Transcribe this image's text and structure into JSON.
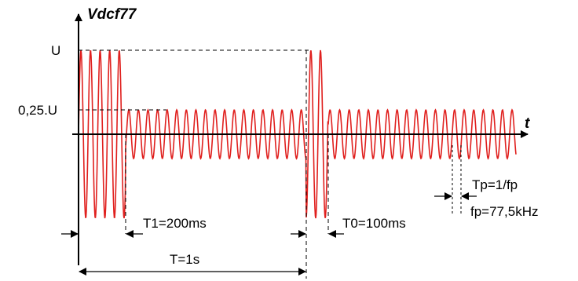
{
  "axes": {
    "y_label": "Vdcf77",
    "x_label": "t"
  },
  "levels": {
    "high": "U",
    "low": "0,25.U"
  },
  "annotations": {
    "t1": "T1=200ms",
    "t0": "T0=100ms",
    "period": "T=1s",
    "carrier_period": "Tp=1/fp",
    "carrier_freq": "fp=77,5kHz"
  },
  "colors": {
    "signal": "#e0201e",
    "line": "#000000"
  }
}
